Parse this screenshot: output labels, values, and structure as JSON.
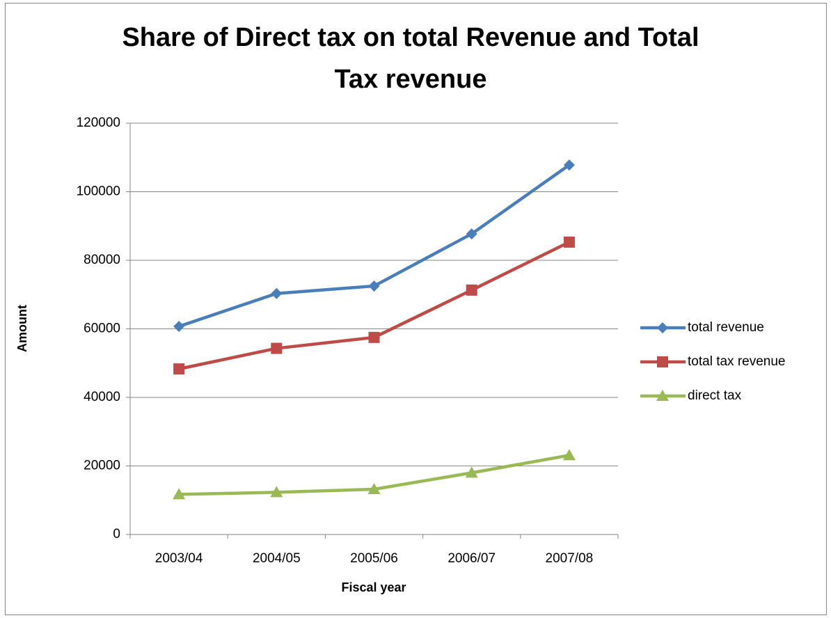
{
  "chart_data": {
    "type": "line",
    "title": [
      "Share of Direct tax on total Revenue and Total",
      "Tax revenue"
    ],
    "x_label": "Fiscal year",
    "y_label": "Amount",
    "categories": [
      "2003/04",
      "2004/05",
      "2005/06",
      "2006/07",
      "2007/08"
    ],
    "series": [
      {
        "name": "total revenue",
        "color": "#4a7ebb",
        "marker": "diamond",
        "values": [
          60700,
          70300,
          72500,
          87700,
          107800
        ]
      },
      {
        "name": "total tax revenue",
        "color": "#be4b48",
        "marker": "square",
        "values": [
          48300,
          54300,
          57500,
          71300,
          85300
        ]
      },
      {
        "name": "direct tax",
        "color": "#98b954",
        "marker": "triangle",
        "values": [
          11700,
          12300,
          13200,
          18000,
          23100
        ]
      }
    ],
    "ylim": [
      0,
      120000
    ],
    "yticks": [
      0,
      20000,
      40000,
      60000,
      80000,
      100000,
      120000
    ],
    "grid": true,
    "legend": "right"
  }
}
